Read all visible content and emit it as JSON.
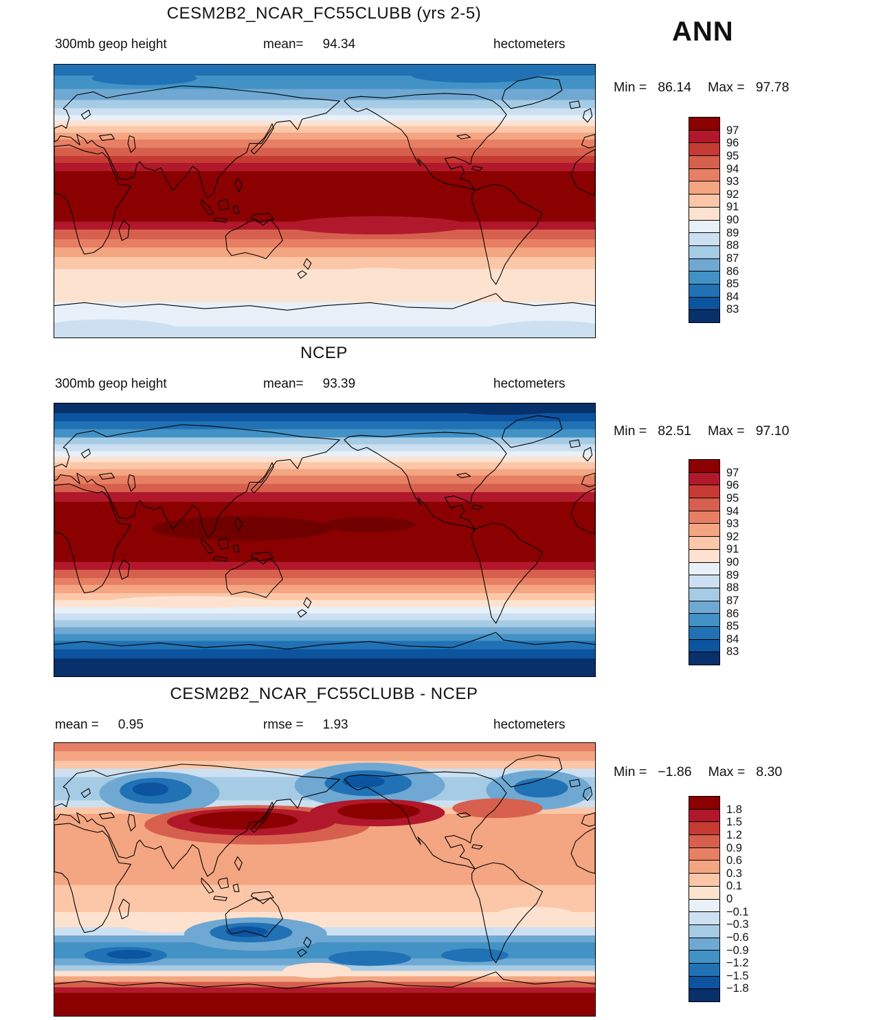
{
  "figure": {
    "season_label": "ANN"
  },
  "panels": [
    {
      "title": "CESM2B2_NCAR_FC55CLUBB (yrs 2-5)",
      "subheader": {
        "left_label": "300mb geop height",
        "left_value": "",
        "mid_label": "mean=",
        "mid_value": "94.34",
        "right_label": "hectometers"
      },
      "stats": {
        "min_label": "Min =",
        "min_value": "86.14",
        "max_label": "Max =",
        "max_value": "97.78"
      },
      "colorbar": {
        "labels": [
          "97",
          "96",
          "95",
          "94",
          "93",
          "92",
          "91",
          "90",
          "89",
          "88",
          "87",
          "86",
          "85",
          "84",
          "83"
        ],
        "colors": [
          "#8b0000",
          "#b2182b",
          "#c53a32",
          "#d6604d",
          "#e77f64",
          "#f4a582",
          "#fbc7a8",
          "#fde2d0",
          "#e8f1f9",
          "#cde0f1",
          "#a6cbe4",
          "#6fa8d2",
          "#4292c6",
          "#2171b5",
          "#0c54a0",
          "#08306b"
        ]
      }
    },
    {
      "title": "NCEP",
      "subheader": {
        "left_label": "300mb geop height",
        "left_value": "",
        "mid_label": "mean=",
        "mid_value": "93.39",
        "right_label": "hectometers"
      },
      "stats": {
        "min_label": "Min =",
        "min_value": "82.51",
        "max_label": "Max =",
        "max_value": "97.10"
      },
      "colorbar": {
        "labels": [
          "97",
          "96",
          "95",
          "94",
          "93",
          "92",
          "91",
          "90",
          "89",
          "88",
          "87",
          "86",
          "85",
          "84",
          "83"
        ],
        "colors": [
          "#8b0000",
          "#b2182b",
          "#c53a32",
          "#d6604d",
          "#e77f64",
          "#f4a582",
          "#fbc7a8",
          "#fde2d0",
          "#e8f1f9",
          "#cde0f1",
          "#a6cbe4",
          "#6fa8d2",
          "#4292c6",
          "#2171b5",
          "#0c54a0",
          "#08306b"
        ]
      }
    },
    {
      "title": "CESM2B2_NCAR_FC55CLUBB - NCEP",
      "subheader": {
        "left_label": "mean =",
        "left_value": "0.95",
        "mid_label": "rmse =",
        "mid_value": "1.93",
        "right_label": "hectometers"
      },
      "stats": {
        "min_label": "Min =",
        "min_value": "−1.86",
        "max_label": "Max =",
        "max_value": "8.30"
      },
      "colorbar": {
        "labels": [
          "1.8",
          "1.5",
          "1.2",
          "0.9",
          "0.6",
          "0.3",
          "0.1",
          "0",
          "−0.1",
          "−0.3",
          "−0.6",
          "−0.9",
          "−1.2",
          "−1.5",
          "−1.8"
        ],
        "colors": [
          "#8b0000",
          "#b2182b",
          "#c53a32",
          "#d6604d",
          "#e77f64",
          "#f4a582",
          "#fbc7a8",
          "#fde2d0",
          "#e8f1f9",
          "#cde0f1",
          "#a6cbe4",
          "#6fa8d2",
          "#4292c6",
          "#2171b5",
          "#0c54a0",
          "#08306b"
        ]
      }
    }
  ],
  "chart_data": [
    {
      "type": "heatmap",
      "subtype": "filled-contour world map, cylindrical equidistant, lon 0-360E left-to-right, lat 90N(top)-90S(bottom)",
      "title": "CESM2B2_NCAR_FC55CLUBB (yrs 2-5)",
      "variable": "300mb geop height",
      "units": "hectometers",
      "season": "ANN",
      "stats": {
        "mean": 94.34,
        "min": 86.14,
        "max": 97.78
      },
      "contour_levels": [
        83,
        84,
        85,
        86,
        87,
        88,
        89,
        90,
        91,
        92,
        93,
        94,
        95,
        96,
        97
      ],
      "palette_high_to_low": [
        "#8b0000",
        "#b2182b",
        "#c53a32",
        "#d6604d",
        "#e77f64",
        "#f4a582",
        "#fbc7a8",
        "#fde2d0",
        "#e8f1f9",
        "#cde0f1",
        "#a6cbe4",
        "#6fa8d2",
        "#4292c6",
        "#2171b5",
        "#0c54a0",
        "#08306b"
      ],
      "zonal_mean_estimate": {
        "lat": [
          90,
          70,
          60,
          50,
          40,
          30,
          20,
          0,
          -20,
          -30,
          -40,
          -55,
          -70,
          -90
        ],
        "value": [
          86.3,
          88.0,
          89.5,
          91.0,
          93.0,
          95.5,
          97.0,
          97.4,
          96.5,
          94.5,
          92.5,
          90.7,
          89.8,
          89.2
        ]
      }
    },
    {
      "type": "heatmap",
      "subtype": "filled-contour world map, cylindrical equidistant, lon 0-360E left-to-right, lat 90N(top)-90S(bottom)",
      "title": "NCEP",
      "variable": "300mb geop height",
      "units": "hectometers",
      "season": "ANN",
      "stats": {
        "mean": 93.39,
        "min": 82.51,
        "max": 97.1
      },
      "contour_levels": [
        83,
        84,
        85,
        86,
        87,
        88,
        89,
        90,
        91,
        92,
        93,
        94,
        95,
        96,
        97
      ],
      "palette_high_to_low": [
        "#8b0000",
        "#b2182b",
        "#c53a32",
        "#d6604d",
        "#e77f64",
        "#f4a582",
        "#fbc7a8",
        "#fde2d0",
        "#e8f1f9",
        "#cde0f1",
        "#a6cbe4",
        "#6fa8d2",
        "#4292c6",
        "#2171b5",
        "#0c54a0",
        "#08306b"
      ],
      "zonal_mean_estimate": {
        "lat": [
          90,
          70,
          60,
          50,
          40,
          30,
          20,
          0,
          -20,
          -30,
          -40,
          -55,
          -70,
          -90
        ],
        "value": [
          83.5,
          86.5,
          88.5,
          90.5,
          92.5,
          95.5,
          96.8,
          97.0,
          96.5,
          94.5,
          92.0,
          88.5,
          85.0,
          82.8
        ]
      }
    },
    {
      "type": "heatmap",
      "subtype": "difference map (model minus NCEP), same projection",
      "title": "CESM2B2_NCAR_FC55CLUBB - NCEP",
      "variable": "300mb geop height difference",
      "units": "hectometers",
      "season": "ANN",
      "stats": {
        "mean": 0.95,
        "rmse": 1.93,
        "min": -1.86,
        "max": 8.3
      },
      "contour_levels": [
        -1.8,
        -1.5,
        -1.2,
        -0.9,
        -0.6,
        -0.3,
        -0.1,
        0,
        0.1,
        0.3,
        0.6,
        0.9,
        1.2,
        1.5,
        1.8
      ],
      "palette_high_to_low": [
        "#8b0000",
        "#b2182b",
        "#c53a32",
        "#d6604d",
        "#e77f64",
        "#f4a582",
        "#fbc7a8",
        "#fde2d0",
        "#e8f1f9",
        "#cde0f1",
        "#a6cbe4",
        "#6fa8d2",
        "#4292c6",
        "#2171b5",
        "#0c54a0",
        "#08306b"
      ],
      "features": [
        "negative anomalies (to -1.8) over N Atlantic/Europe, N Pacific/Alaska and NE Atlantic near 55-75N",
        "strong positive anomaly (>+1.8) elongated over E Asia and NW Pacific near 30-50N",
        "broad weak positive (+0.3 to +0.9) through tropics and subtropics",
        "negative band (to < -1.8) near 50-65S, strongest S of Australia and in S Atlantic/S Pacific",
        "large positive anomaly over Antarctica (max +8.30)"
      ]
    }
  ]
}
